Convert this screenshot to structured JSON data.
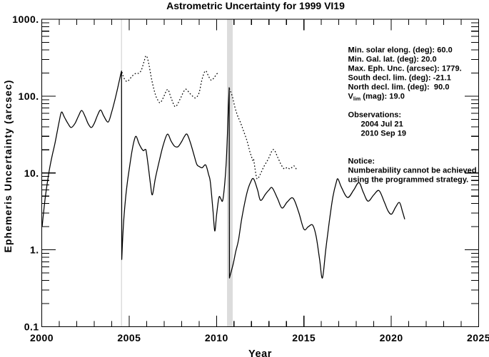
{
  "title": "Astrometric Uncertainty for 1999 VI19",
  "chart_data": {
    "type": "line",
    "title": "Astrometric Uncertainty for 1999 VI19",
    "xlabel": "Year",
    "ylabel": "Ephemeris Uncertainty (arcsec)",
    "xlim": [
      2000,
      2025
    ],
    "ylim": [
      0.1,
      1000
    ],
    "yscale": "log",
    "grid": false,
    "x_major_ticks": [
      2000,
      2005,
      2010,
      2015,
      2020,
      2025
    ],
    "x_tick_labels": [
      "2000",
      "2005",
      "2010",
      "2015",
      "2020",
      "2025"
    ],
    "x_minor_tick_step": 1,
    "y_major_ticks": [
      0.1,
      1,
      10,
      100,
      1000
    ],
    "y_tick_labels": [
      "0.1",
      "1.",
      "10.",
      "100.",
      "1000."
    ],
    "y_minor_ticks_per_decade": [
      2,
      3,
      4,
      5,
      6,
      7,
      8,
      9
    ],
    "observation_markers": [
      {
        "kind": "line",
        "year": 2004.57,
        "name": "observation-epoch-2004-jul-21"
      },
      {
        "kind": "band",
        "year_start": 2010.6,
        "year_end": 2010.93,
        "name": "observation-epoch-2010-sep-19"
      }
    ],
    "marker_color": "#dcdcdc",
    "line_color": "#000000",
    "series": [
      {
        "name": "uncertainty-with-observations",
        "style": "solid",
        "segments": [
          [
            [
              2000.02,
              2.0
            ],
            [
              2000.1,
              3.0
            ],
            [
              2000.2,
              4.8
            ],
            [
              2000.32,
              7.5
            ],
            [
              2000.45,
              11.5
            ],
            [
              2000.6,
              17
            ],
            [
              2000.75,
              24
            ],
            [
              2000.9,
              36
            ],
            [
              2001.0,
              47
            ],
            [
              2001.13,
              62
            ],
            [
              2001.3,
              53
            ],
            [
              2001.5,
              44
            ],
            [
              2001.68,
              39
            ],
            [
              2001.9,
              44
            ],
            [
              2002.1,
              55
            ],
            [
              2002.29,
              65
            ],
            [
              2002.5,
              53
            ],
            [
              2002.65,
              44
            ],
            [
              2002.83,
              39
            ],
            [
              2003.0,
              44
            ],
            [
              2003.2,
              57
            ],
            [
              2003.37,
              66
            ],
            [
              2003.55,
              55
            ],
            [
              2003.8,
              46
            ],
            [
              2004.0,
              62
            ],
            [
              2004.15,
              83
            ],
            [
              2004.3,
              115
            ],
            [
              2004.42,
              152
            ],
            [
              2004.52,
              193
            ],
            [
              2004.565,
              212
            ],
            [
              2004.578,
              0.75
            ],
            [
              2004.63,
              1.4
            ],
            [
              2004.7,
              2.6
            ],
            [
              2004.8,
              4.8
            ],
            [
              2004.9,
              7.6
            ],
            [
              2005.0,
              11
            ],
            [
              2005.15,
              18.5
            ],
            [
              2005.28,
              26
            ],
            [
              2005.4,
              30
            ],
            [
              2005.55,
              24.5
            ],
            [
              2005.7,
              21
            ],
            [
              2005.82,
              19.5
            ],
            [
              2005.92,
              20.3
            ],
            [
              2005.98,
              19.0
            ],
            [
              2006.1,
              12
            ],
            [
              2006.22,
              7.2
            ],
            [
              2006.33,
              5.2
            ],
            [
              2006.5,
              8.5
            ],
            [
              2006.73,
              14.5
            ],
            [
              2006.95,
              23
            ],
            [
              2007.19,
              32
            ],
            [
              2007.4,
              26
            ],
            [
              2007.6,
              22.3
            ],
            [
              2007.8,
              22.0
            ],
            [
              2008.0,
              25.5
            ],
            [
              2008.15,
              29.5
            ],
            [
              2008.31,
              32
            ],
            [
              2008.5,
              25
            ],
            [
              2008.7,
              17.5
            ],
            [
              2008.87,
              13.0
            ],
            [
              2009.02,
              12.1
            ],
            [
              2009.18,
              11.7
            ],
            [
              2009.38,
              12.7
            ],
            [
              2009.55,
              9.5
            ],
            [
              2009.65,
              7.5
            ],
            [
              2009.8,
              3.2
            ],
            [
              2009.9,
              1.76
            ],
            [
              2010.0,
              2.8
            ],
            [
              2010.1,
              4.3
            ],
            [
              2010.16,
              4.95
            ],
            [
              2010.25,
              4.6
            ],
            [
              2010.35,
              4.35
            ],
            [
              2010.45,
              6.5
            ],
            [
              2010.55,
              13
            ],
            [
              2010.62,
              30
            ],
            [
              2010.68,
              75
            ],
            [
              2010.725,
              129
            ],
            [
              2010.74,
              0.43
            ],
            [
              2010.95,
              0.65
            ],
            [
              2011.1,
              0.95
            ],
            [
              2011.26,
              1.35
            ],
            [
              2011.45,
              2.6
            ],
            [
              2011.74,
              5.5
            ],
            [
              2011.95,
              7.6
            ],
            [
              2012.12,
              8.4
            ],
            [
              2012.35,
              6.0
            ],
            [
              2012.52,
              4.4
            ],
            [
              2012.8,
              5.3
            ],
            [
              2013.0,
              6.0
            ],
            [
              2013.19,
              6.4
            ],
            [
              2013.5,
              4.6
            ],
            [
              2013.75,
              3.5
            ],
            [
              2014.05,
              4.2
            ],
            [
              2014.38,
              4.7
            ],
            [
              2014.7,
              3.1
            ],
            [
              2015.0,
              1.86
            ],
            [
              2015.25,
              2.0
            ],
            [
              2015.5,
              2.1
            ],
            [
              2015.7,
              1.5
            ],
            [
              2015.9,
              0.75
            ],
            [
              2016.06,
              0.43
            ],
            [
              2016.25,
              1.0
            ],
            [
              2016.45,
              2.3
            ],
            [
              2016.66,
              4.9
            ],
            [
              2016.85,
              7.5
            ],
            [
              2016.95,
              8.35
            ],
            [
              2017.15,
              6.5
            ],
            [
              2017.5,
              4.8
            ],
            [
              2017.85,
              6.0
            ],
            [
              2018.15,
              7.5
            ],
            [
              2018.4,
              5.6
            ],
            [
              2018.67,
              4.3
            ],
            [
              2019.0,
              5.2
            ],
            [
              2019.3,
              5.9
            ],
            [
              2019.6,
              4.2
            ],
            [
              2019.82,
              3.2
            ],
            [
              2020.02,
              2.92
            ],
            [
              2020.25,
              3.6
            ],
            [
              2020.47,
              4.12
            ],
            [
              2020.65,
              3.1
            ],
            [
              2020.77,
              2.5
            ]
          ]
        ]
      },
      {
        "name": "uncertainty-without-recovery",
        "style": "dotted",
        "segments": [
          [
            [
              2004.59,
              205
            ],
            [
              2004.7,
              172
            ],
            [
              2004.86,
              155
            ],
            [
              2005.0,
              163
            ],
            [
              2005.15,
              180
            ],
            [
              2005.3,
              193
            ],
            [
              2005.45,
              200
            ],
            [
              2005.55,
              198
            ],
            [
              2005.7,
              218
            ],
            [
              2005.85,
              280
            ],
            [
              2005.97,
              335
            ],
            [
              2006.1,
              280
            ],
            [
              2006.3,
              160
            ],
            [
              2006.5,
              105
            ],
            [
              2006.65,
              88
            ],
            [
              2006.78,
              82
            ],
            [
              2006.95,
              95
            ],
            [
              2007.2,
              122
            ],
            [
              2007.4,
              95
            ],
            [
              2007.64,
              73
            ],
            [
              2007.9,
              90
            ],
            [
              2008.1,
              112
            ],
            [
              2008.25,
              123
            ],
            [
              2008.45,
              110
            ],
            [
              2008.65,
              99
            ],
            [
              2008.81,
              95
            ],
            [
              2009.0,
              110
            ],
            [
              2009.18,
              168
            ],
            [
              2009.37,
              213
            ],
            [
              2009.55,
              180
            ],
            [
              2009.7,
              161
            ],
            [
              2009.85,
              172
            ],
            [
              2010.0,
              193
            ],
            [
              2010.07,
              198
            ]
          ],
          [
            [
              2010.735,
              126
            ],
            [
              2010.9,
              100
            ],
            [
              2011.05,
              72
            ],
            [
              2011.2,
              56
            ],
            [
              2011.36,
              46
            ],
            [
              2011.55,
              35
            ],
            [
              2011.75,
              26
            ],
            [
              2011.92,
              18.5
            ],
            [
              2012.0,
              16.5
            ],
            [
              2012.06,
              14.6
            ],
            [
              2012.12,
              15.2
            ],
            [
              2012.2,
              11.5
            ],
            [
              2012.32,
              8.4
            ],
            [
              2012.5,
              9.6
            ],
            [
              2012.7,
              12
            ],
            [
              2012.95,
              15
            ],
            [
              2013.25,
              20.2
            ],
            [
              2013.5,
              16
            ],
            [
              2013.7,
              12.8
            ],
            [
              2013.88,
              11.3
            ],
            [
              2014.05,
              11.8
            ],
            [
              2014.2,
              11.3
            ],
            [
              2014.35,
              12.0
            ],
            [
              2014.45,
              12.3
            ],
            [
              2014.6,
              10.9
            ]
          ]
        ]
      }
    ]
  },
  "annotations": {
    "info_lines": [
      {
        "text": "Min. solar elong. (deg): 60.0"
      },
      {
        "text": "Min. Gal. lat. (deg): 20.0"
      },
      {
        "text": "Max. Eph. Unc. (arcsec): 1779."
      },
      {
        "text": "South decl. lim. (deg): -21.1"
      },
      {
        "text": "North decl. lim. (deg):  90.0"
      },
      {
        "pre": "V",
        "sub": "lim",
        "post": " (mag): 19.0"
      },
      {
        "text": ""
      },
      {
        "text": "Observations:"
      },
      {
        "text": "2004 Jul 21",
        "indent": 18
      },
      {
        "text": "2010 Sep 19",
        "indent": 18
      },
      {
        "text": ""
      },
      {
        "text": ""
      },
      {
        "text": "Notice:"
      },
      {
        "text": "Numberability cannot be achieved"
      },
      {
        "text": "using the programmed strategy."
      }
    ]
  }
}
